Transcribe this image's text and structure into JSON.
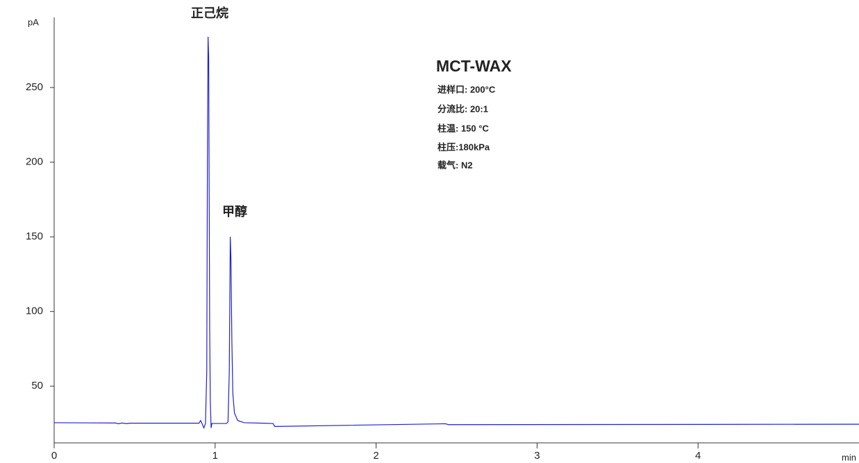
{
  "chart_data": {
    "type": "line",
    "x_label": "min",
    "y_label": "pA",
    "annotations": [
      "正己烷",
      "甲醇"
    ],
    "method_title": "MCT-WAX",
    "conditions": [
      "进样口: 200°C",
      "分流比: 20:1",
      "柱温: 150 °C",
      "柱压:180kPa",
      "载气: N2"
    ],
    "series": [
      {
        "color": "#1f1fd6",
        "x": [
          0,
          0.38,
          0.4,
          0.42,
          0.45,
          0.47,
          0.9,
          0.91,
          0.92,
          0.93,
          0.94,
          0.948,
          0.952,
          0.956,
          0.96,
          0.963,
          0.966,
          0.97,
          0.975,
          0.98,
          1.0,
          1.07,
          1.08,
          1.088,
          1.094,
          1.098,
          1.104,
          1.11,
          1.12,
          1.14,
          1.18,
          1.36,
          1.37,
          2.43,
          2.45,
          5.0
        ],
        "values": [
          25.5,
          25.3,
          24.8,
          25.3,
          24.9,
          25.2,
          25.2,
          27,
          24.6,
          22,
          25,
          60,
          200,
          284,
          270,
          180,
          90,
          40,
          22,
          25,
          25,
          25,
          26,
          60,
          150,
          137,
          80,
          45,
          32,
          27,
          25.5,
          25,
          23,
          24.8,
          24.2,
          24.5
        ]
      }
    ],
    "xlim": [
      0,
      5
    ],
    "xticks": [
      0,
      1,
      2,
      3,
      4
    ],
    "ylim": [
      12,
      297
    ],
    "yticks": [
      50,
      100,
      150,
      200,
      250
    ]
  }
}
